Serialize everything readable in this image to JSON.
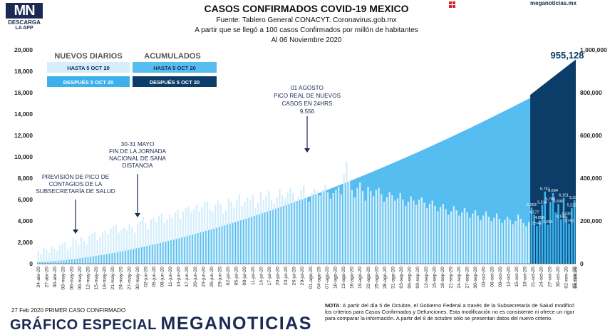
{
  "header": {
    "logo_text": "MN",
    "logo_line1": "DESCARGA",
    "logo_line2": "LA APP",
    "title": "CASOS CONFIRMADOS COVID-19 MEXICO",
    "source": "Fuente: Tablero General CONACYT. Coronavirus.gob.mx",
    "subtitle": "A partir que se llegó a 100 casos Confirmados por millón de habitantes",
    "date": "Al 06 Noviembre 2020",
    "site": "meganoticias.mx"
  },
  "legend": {
    "daily_title": "NUEVOS DIARIOS",
    "cumulative_title": "ACUMULADOS",
    "before_label": "HASTA 5 OCT 20",
    "after_label": "DESPUÉS 5 OCT 20",
    "colors": {
      "daily_before": "#d4eefb",
      "daily_after": "#3bb0ec",
      "cum_before": "#56bdf0",
      "cum_after": "#0b3d68"
    }
  },
  "annotations": {
    "forecast": [
      "PREVISIÓN DE PICO DE",
      "CONTAGIOS DE LA",
      "SUBSECRETARÍA DE SALUD"
    ],
    "distancing": [
      "30-31 MAYO",
      "FIN DE LA JORNADA",
      "NACIONAL DE SANA",
      "DISTANCIA"
    ],
    "peak": [
      "01 AGOSTO",
      "PICO REAL DE NUEVOS",
      "CASOS EN 24HRS",
      "9,556"
    ],
    "total_label": "955,128"
  },
  "footer": {
    "first_case": "27 Feb 2020 PRIMER CASO CONFIRMADO",
    "brand_prefix": "GRÁFICO ESPECIAL",
    "brand_name": "MEGANOTICIAS",
    "note_label": "NOTA",
    "note_text": ": A partir del día 5 de Octubre, el Gobierno Federal a través de la Subsecretaría de Salud modificó los criterios para Casos Confirmados y Defunciones. Esta modificación no es consistente ni ofrece un rigor para comparar la información. A partir del 8 de octubre sólo se presentan datos del nuevo criterio."
  },
  "chart_data": {
    "type": "bar",
    "y_left": {
      "min": 0,
      "max": 20000,
      "ticks": [
        "0",
        "2,000",
        "4,000",
        "6,000",
        "8,000",
        "10,000",
        "12,000",
        "14,000",
        "16,000",
        "18,000",
        "20,000"
      ]
    },
    "y_right": {
      "min": 0,
      "max": 1000000,
      "ticks": [
        "0",
        "200,000",
        "400,000",
        "600,000",
        "800,000",
        "1,000,000"
      ]
    },
    "date_start": "24-abr-20",
    "date_end": "06-nov-20",
    "x_tick_labels": [
      "24-abr-20",
      "27-abr-20",
      "30-abr-20",
      "03-may-20",
      "06-may-20",
      "09-may-20",
      "12-may-20",
      "15-may-20",
      "18-may-20",
      "21-may-20",
      "24-may-20",
      "27-may-20",
      "30-may-20",
      "02-jun-20",
      "05-jun-20",
      "08-jun-20",
      "11-jun-20",
      "14-jun-20",
      "17-jun-20",
      "20-jun-20",
      "23-jun-20",
      "26-jun-20",
      "29-jun-20",
      "02-jul-20",
      "05-jul-20",
      "08-jul-20",
      "11-jul-20",
      "14-jul-20",
      "17-jul-20",
      "20-jul-20",
      "23-jul-20",
      "26-jul-20",
      "29-jul-20",
      "01-ago-20",
      "04-ago-20",
      "07-ago-20",
      "10-ago-20",
      "13-ago-20",
      "16-ago-20",
      "19-ago-20",
      "22-ago-20",
      "25-ago-20",
      "28-ago-20",
      "31-ago-20",
      "03-sep-20",
      "06-sep-20",
      "09-sep-20",
      "12-sep-20",
      "15-sep-20",
      "18-sep-20",
      "21-sep-20",
      "24-sep-20",
      "27-sep-20",
      "30-sep-20",
      "03-oct-20",
      "06-oct-20",
      "09-oct-20",
      "12-oct-20",
      "15-oct-20",
      "18-oct-20",
      "21-oct-20",
      "24-oct-20",
      "27-oct-20",
      "30-oct-20",
      "02-nov-20",
      "05-nov-20"
    ],
    "daily_before": [
      1200,
      900,
      1500,
      1300,
      1000,
      1600,
      1400,
      1200,
      1700,
      1900,
      2000,
      1400,
      1600,
      2400,
      2200,
      1800,
      2500,
      2100,
      1800,
      2600,
      2800,
      3000,
      2200,
      2500,
      2900,
      3100,
      2800,
      3300,
      3500,
      3600,
      2900,
      3200,
      3400,
      3100,
      3700,
      3400,
      2900,
      3700,
      4000,
      4400,
      3800,
      3200,
      4100,
      4300,
      3900,
      4500,
      4700,
      3800,
      4100,
      4600,
      4300,
      4800,
      5000,
      4200,
      4900,
      5200,
      5400,
      4800,
      5100,
      5500,
      4900,
      5300,
      5700,
      5800,
      5100,
      4900,
      5500,
      5900,
      5600,
      4700,
      5000,
      6100,
      5800,
      5300,
      6000,
      6500,
      5400,
      5800,
      6200,
      5900,
      6400,
      5200,
      5700,
      6700,
      6000,
      6300,
      6800,
      5900,
      5600,
      6200,
      7000,
      6400,
      6100,
      6700,
      7100,
      6600,
      5900,
      6300,
      6900,
      7300,
      6200,
      5800,
      6600,
      7000,
      6800,
      6400,
      6900,
      7400,
      6700,
      6100,
      6600,
      6900,
      7200,
      6500,
      8400,
      9556,
      7800,
      6900,
      6200,
      7100,
      7600,
      6800,
      5900,
      7200,
      6800,
      6300,
      6900,
      7100,
      6500,
      5800,
      6200,
      6700,
      6400,
      5900,
      6100,
      6600,
      6000,
      5400,
      5800,
      6300,
      5900,
      5500,
      6000,
      6200,
      5700,
      5200,
      5600,
      5900,
      5400,
      4900,
      5300,
      5600,
      5100,
      4600,
      4900,
      5400,
      5000,
      4500,
      4800,
      5200,
      4800,
      4300,
      4700,
      5000,
      4500,
      4100,
      4500,
      4900,
      4400,
      4000,
      4300,
      4700,
      4200,
      3800,
      4100,
      4400,
      4100,
      3700,
      4000,
      4600,
      4200,
      3800,
      3500,
      3900
    ],
    "daily_after": [
      5263,
      4577,
      3542,
      4056,
      5514,
      6751,
      3655,
      5788,
      6604,
      4800,
      5590,
      4160,
      6151,
      4430,
      3760,
      5222,
      5931
    ],
    "daily_after_labels": [
      "5,263",
      "4,577",
      "3,542",
      "4,056",
      "5,514",
      "6,751",
      "3,655",
      "5,788",
      "6,604",
      "",
      "5,590",
      "4,160",
      "6,151",
      "4,430",
      "3,760",
      "5,222",
      "5,931"
    ],
    "cumulative_before_end": 775000,
    "cumulative_after_start": 789780,
    "cumulative_total": 955128
  }
}
